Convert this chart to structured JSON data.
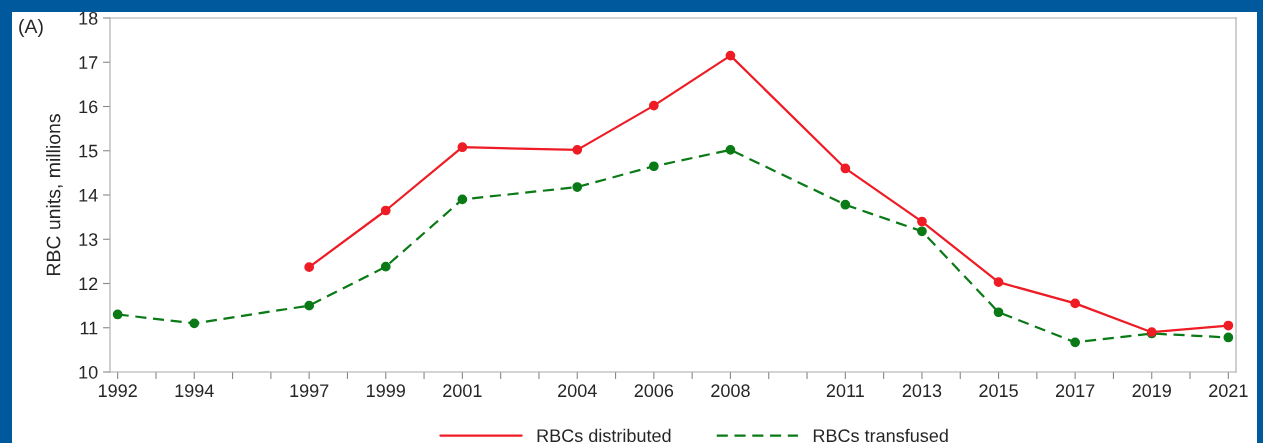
{
  "chart_data": {
    "type": "line",
    "ylabel": "RBC units, millions",
    "annotations": [
      "(A)"
    ],
    "x": [
      1992,
      1994,
      1997,
      1999,
      2001,
      2004,
      2006,
      2008,
      2011,
      2013,
      2015,
      2017,
      2019,
      2021
    ],
    "series": [
      {
        "name": "RBCs distributed",
        "color": "#ee1c25",
        "line_style": "solid",
        "values": [
          null,
          null,
          12.37,
          13.65,
          15.08,
          15.02,
          16.02,
          17.15,
          14.6,
          13.4,
          12.03,
          11.55,
          10.9,
          11.05
        ]
      },
      {
        "name": "RBCs transfused",
        "color": "#0a7a17",
        "line_style": "dashed",
        "values": [
          11.3,
          11.1,
          11.5,
          12.38,
          13.9,
          14.18,
          14.65,
          15.02,
          13.78,
          13.18,
          11.35,
          10.67,
          10.87,
          10.78
        ]
      }
    ],
    "marker": "circle",
    "grid": false,
    "legend": "bottom",
    "xlim": [
      1991.8,
      2021.2
    ],
    "xticks": [
      1992,
      {
        "value": 1993,
        "label": null
      },
      1994,
      {
        "value": 1995,
        "label": null
      },
      {
        "value": 1996,
        "label": null
      },
      1997,
      {
        "value": 1998,
        "label": null
      },
      1999,
      {
        "value": 2000,
        "label": null
      },
      2001,
      {
        "value": 2002,
        "label": null
      },
      {
        "value": 2003,
        "label": null
      },
      2004,
      {
        "value": 2005,
        "label": null
      },
      2006,
      {
        "value": 2007,
        "label": null
      },
      2008,
      {
        "value": 2009,
        "label": null
      },
      {
        "value": 2010,
        "label": null
      },
      2011,
      {
        "value": 2012,
        "label": null
      },
      2013,
      {
        "value": 2014,
        "label": null
      },
      2015,
      {
        "value": 2016,
        "label": null
      },
      2017,
      {
        "value": 2018,
        "label": null
      },
      2019,
      {
        "value": 2020,
        "label": null
      },
      2021
    ],
    "ylim": [
      10,
      18
    ],
    "yticks": [
      10,
      11,
      12,
      13,
      14,
      15,
      16,
      17,
      18
    ]
  }
}
